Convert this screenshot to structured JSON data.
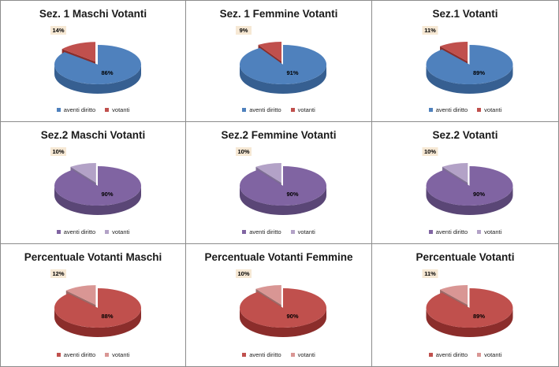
{
  "chart_data": [
    {
      "type": "pie",
      "title": "Sez. 1 Maschi Votanti",
      "categories": [
        "aventi diritto",
        "votanti"
      ],
      "values": [
        86,
        14
      ],
      "labels": [
        "86%",
        "14%"
      ],
      "colors": [
        "#4f81bd",
        "#c0504d"
      ],
      "side_colors": [
        "#365f91",
        "#8b2d2b"
      ]
    },
    {
      "type": "pie",
      "title": "Sez. 1  Femmine Votanti",
      "categories": [
        "aventi diritto",
        "votanti"
      ],
      "values": [
        91,
        9
      ],
      "labels": [
        "91%",
        "9%"
      ],
      "colors": [
        "#4f81bd",
        "#c0504d"
      ],
      "side_colors": [
        "#365f91",
        "#8b2d2b"
      ]
    },
    {
      "type": "pie",
      "title": "Sez.1  Votanti",
      "categories": [
        "aventi diritto",
        "votanti"
      ],
      "values": [
        89,
        11
      ],
      "labels": [
        "89%",
        "11%"
      ],
      "colors": [
        "#4f81bd",
        "#c0504d"
      ],
      "side_colors": [
        "#365f91",
        "#8b2d2b"
      ]
    },
    {
      "type": "pie",
      "title": "Sez.2  Maschi Votanti",
      "categories": [
        "aventi diritto",
        "votanti"
      ],
      "values": [
        90,
        10
      ],
      "labels": [
        "90%",
        "10%"
      ],
      "colors": [
        "#8064a2",
        "#b3a2c7"
      ],
      "side_colors": [
        "#5a4676",
        "#7f6f96"
      ]
    },
    {
      "type": "pie",
      "title": "Sez.2 Femmine Votanti",
      "categories": [
        "aventi diritto",
        "votanti"
      ],
      "values": [
        90,
        10
      ],
      "labels": [
        "90%",
        "10%"
      ],
      "colors": [
        "#8064a2",
        "#b3a2c7"
      ],
      "side_colors": [
        "#5a4676",
        "#7f6f96"
      ]
    },
    {
      "type": "pie",
      "title": "Sez.2  Votanti",
      "categories": [
        "aventi diritto",
        "votanti"
      ],
      "values": [
        90,
        10
      ],
      "labels": [
        "90%",
        "10%"
      ],
      "colors": [
        "#8064a2",
        "#b3a2c7"
      ],
      "side_colors": [
        "#5a4676",
        "#7f6f96"
      ]
    },
    {
      "type": "pie",
      "title": "Percentuale  Votanti Maschi",
      "categories": [
        "aventi diritto",
        "votanti"
      ],
      "values": [
        88,
        12
      ],
      "labels": [
        "88%",
        "12%"
      ],
      "colors": [
        "#c0504d",
        "#d99694"
      ],
      "side_colors": [
        "#8b2d2b",
        "#9e6a68"
      ]
    },
    {
      "type": "pie",
      "title": "Percentuale Votanti Femmine",
      "categories": [
        "aventi diritto",
        "votanti"
      ],
      "values": [
        90,
        10
      ],
      "labels": [
        "90%",
        "10%"
      ],
      "colors": [
        "#c0504d",
        "#d99694"
      ],
      "side_colors": [
        "#8b2d2b",
        "#9e6a68"
      ]
    },
    {
      "type": "pie",
      "title": "Percentuale Votanti",
      "categories": [
        "aventi diritto",
        "votanti"
      ],
      "values": [
        89,
        11
      ],
      "labels": [
        "89%",
        "11%"
      ],
      "colors": [
        "#c0504d",
        "#d99694"
      ],
      "side_colors": [
        "#8b2d2b",
        "#9e6a68"
      ]
    }
  ]
}
